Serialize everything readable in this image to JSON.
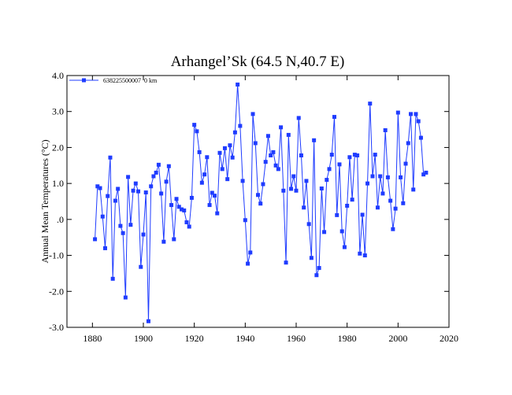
{
  "chart_data": {
    "type": "line",
    "title": "Arhangel’Sk (64.5 N,40.7 E)",
    "y_label": "Annual Mean Temperatures (°C)",
    "legend": "top-left",
    "xlim": [
      1870,
      2020
    ],
    "xticks": [
      1880,
      1900,
      1920,
      1940,
      1960,
      1980,
      2000,
      2020
    ],
    "ylim": [
      -3,
      4
    ],
    "yticks": [
      {
        "value": -3,
        "label": "-3.0"
      },
      {
        "value": -2,
        "label": "-2.0"
      },
      {
        "value": -1,
        "label": "-1.0"
      },
      {
        "value": 0,
        "label": ".0"
      },
      {
        "value": 1,
        "label": "1.0"
      },
      {
        "value": 2,
        "label": "2.0"
      },
      {
        "value": 3,
        "label": "3.0"
      },
      {
        "value": 4,
        "label": "4.0"
      }
    ],
    "x": [
      1881,
      1882,
      1883,
      1884,
      1885,
      1886,
      1887,
      1888,
      1889,
      1890,
      1891,
      1892,
      1893,
      1894,
      1895,
      1896,
      1897,
      1898,
      1899,
      1900,
      1901,
      1902,
      1903,
      1904,
      1905,
      1906,
      1907,
      1908,
      1909,
      1910,
      1911,
      1912,
      1913,
      1914,
      1915,
      1916,
      1917,
      1918,
      1919,
      1920,
      1921,
      1922,
      1923,
      1924,
      1925,
      1926,
      1927,
      1928,
      1929,
      1930,
      1931,
      1932,
      1933,
      1934,
      1935,
      1936,
      1937,
      1938,
      1939,
      1940,
      1941,
      1942,
      1943,
      1944,
      1945,
      1946,
      1947,
      1948,
      1949,
      1950,
      1951,
      1952,
      1953,
      1954,
      1955,
      1956,
      1957,
      1958,
      1959,
      1960,
      1961,
      1962,
      1963,
      1964,
      1965,
      1966,
      1967,
      1968,
      1969,
      1970,
      1971,
      1972,
      1973,
      1974,
      1975,
      1976,
      1977,
      1978,
      1979,
      1980,
      1981,
      1982,
      1983,
      1984,
      1985,
      1986,
      1987,
      1988,
      1989,
      1990,
      1991,
      1992,
      1993,
      1994,
      1995,
      1996,
      1997,
      1998,
      1999,
      2000,
      2001,
      2002,
      2003,
      2004,
      2005,
      2006,
      2007,
      2008,
      2009,
      2010,
      2011
    ],
    "series": [
      {
        "name": "638225500007  0 km",
        "color": "#1f3cff",
        "values": [
          -0.55,
          0.92,
          0.87,
          0.08,
          -0.8,
          0.65,
          1.72,
          -1.65,
          0.52,
          0.85,
          -0.18,
          -0.38,
          -2.17,
          1.18,
          -0.15,
          0.8,
          1.0,
          0.78,
          -1.32,
          -0.42,
          0.75,
          -2.83,
          0.92,
          1.2,
          1.3,
          1.52,
          0.72,
          -0.62,
          1.05,
          1.48,
          0.4,
          -0.55,
          0.57,
          0.35,
          0.28,
          0.25,
          -0.08,
          -0.2,
          0.6,
          2.63,
          2.45,
          1.87,
          1.02,
          1.25,
          1.73,
          0.4,
          0.74,
          0.66,
          0.17,
          1.85,
          1.4,
          1.98,
          1.12,
          2.06,
          1.72,
          2.42,
          3.75,
          2.6,
          1.07,
          -0.02,
          -1.23,
          -0.92,
          2.93,
          2.12,
          0.68,
          0.44,
          0.98,
          1.6,
          2.32,
          1.78,
          1.87,
          1.5,
          1.4,
          2.56,
          0.8,
          -1.2,
          2.35,
          0.85,
          1.2,
          0.8,
          2.82,
          1.78,
          0.33,
          1.07,
          -0.13,
          -1.07,
          2.2,
          -1.55,
          -1.35,
          0.86,
          -0.35,
          1.1,
          1.4,
          1.8,
          2.85,
          0.12,
          1.53,
          -0.33,
          -0.77,
          0.38,
          1.73,
          0.55,
          1.8,
          1.78,
          -0.95,
          0.13,
          -1.0,
          1.0,
          3.22,
          1.2,
          1.8,
          0.33,
          1.2,
          0.72,
          2.48,
          1.17,
          0.52,
          -0.27,
          0.3,
          2.97,
          1.17,
          0.45,
          1.55,
          2.12,
          2.93,
          0.83,
          2.93,
          2.73,
          2.27,
          1.25,
          1.3
        ]
      }
    ]
  }
}
